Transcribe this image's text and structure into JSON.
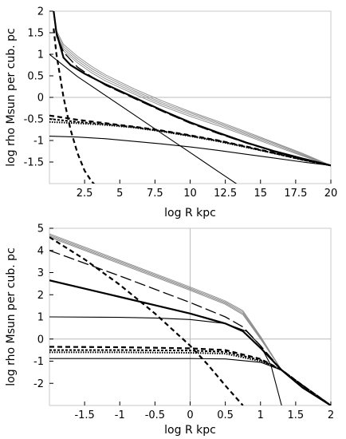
{
  "chart_data": [
    {
      "type": "line",
      "title": "",
      "xlabel": "log R  kpc",
      "ylabel": "log  rho  Msun  per cub. pc",
      "xlim": [
        0,
        20
      ],
      "ylim": [
        -2,
        2
      ],
      "xticks": [
        2.5,
        5,
        7.5,
        10,
        12.5,
        15,
        17.5,
        20
      ],
      "xtick_labels": [
        "2.5",
        "5",
        "7.5",
        "10",
        "12.5",
        "15",
        "17.5",
        "20"
      ],
      "yticks": [
        2,
        1.5,
        1,
        0.5,
        0,
        -0.5,
        -1,
        -1.5
      ],
      "ytick_labels": [
        "2",
        "1.5",
        "1",
        "0.5",
        "0",
        "-0.5",
        "-1",
        "-1.5"
      ],
      "reference_lines": {
        "y": 0
      },
      "series": [
        {
          "style": "thin-gray",
          "x": [
            0.3,
            0.5,
            1,
            2,
            3,
            4,
            6,
            8,
            10,
            12,
            14,
            16,
            18,
            20
          ],
          "y": [
            2.0,
            1.55,
            1.23,
            0.95,
            0.72,
            0.52,
            0.2,
            -0.08,
            -0.33,
            -0.56,
            -0.8,
            -1.05,
            -1.3,
            -1.58
          ]
        },
        {
          "style": "thin-gray",
          "x": [
            0.3,
            0.5,
            1,
            2,
            3,
            4,
            6,
            8,
            10,
            12,
            14,
            16,
            18,
            20
          ],
          "y": [
            2.0,
            1.5,
            1.18,
            0.9,
            0.67,
            0.48,
            0.16,
            -0.12,
            -0.36,
            -0.59,
            -0.83,
            -1.07,
            -1.32,
            -1.58
          ]
        },
        {
          "style": "thin-gray",
          "x": [
            0.3,
            0.5,
            1,
            2,
            3,
            4,
            6,
            8,
            10,
            12,
            14,
            16,
            18,
            20
          ],
          "y": [
            2.0,
            1.45,
            1.13,
            0.85,
            0.62,
            0.43,
            0.12,
            -0.16,
            -0.4,
            -0.62,
            -0.86,
            -1.1,
            -1.34,
            -1.58
          ]
        },
        {
          "style": "thin-gray",
          "x": [
            0.3,
            0.5,
            1,
            2,
            3,
            4,
            6,
            8,
            10,
            12,
            14,
            16,
            18,
            20
          ],
          "y": [
            2.0,
            1.4,
            1.08,
            0.8,
            0.57,
            0.38,
            0.08,
            -0.2,
            -0.44,
            -0.66,
            -0.89,
            -1.13,
            -1.36,
            -1.58
          ]
        },
        {
          "style": "thick-solid",
          "x": [
            0.3,
            0.5,
            1,
            1.5,
            2.5,
            4,
            6,
            8,
            10,
            12,
            14,
            16,
            18,
            20
          ],
          "y": [
            2.0,
            1.5,
            0.92,
            0.75,
            0.55,
            0.3,
            0.0,
            -0.3,
            -0.58,
            -0.82,
            -1.05,
            -1.25,
            -1.42,
            -1.58
          ]
        },
        {
          "style": "long-dash",
          "x": [
            0.3,
            0.5,
            1,
            2,
            3,
            4,
            6,
            8,
            10,
            12,
            14,
            16,
            18,
            20
          ],
          "y": [
            2.0,
            1.45,
            1.05,
            0.7,
            0.48,
            0.28,
            -0.02,
            -0.32,
            -0.6,
            -0.84,
            -1.06,
            -1.26,
            -1.44,
            -1.58
          ]
        },
        {
          "style": "thin-solid",
          "x": [
            0,
            2,
            4,
            6,
            8,
            10,
            12,
            14
          ],
          "y": [
            1.0,
            0.48,
            0.04,
            -0.4,
            -0.84,
            -1.28,
            -1.72,
            -2.16
          ]
        },
        {
          "style": "dashed",
          "x": [
            0.3,
            0.5,
            1,
            1.5,
            2,
            2.5,
            3,
            3.3
          ],
          "y": [
            1.6,
            1.0,
            0.0,
            -0.75,
            -1.3,
            -1.7,
            -1.95,
            -2.05
          ]
        },
        {
          "style": "dashed",
          "x": [
            0,
            2,
            4,
            6,
            8,
            10,
            12,
            14,
            16,
            18,
            20
          ],
          "y": [
            -0.42,
            -0.52,
            -0.6,
            -0.68,
            -0.77,
            -0.88,
            -1.0,
            -1.14,
            -1.29,
            -1.44,
            -1.58
          ]
        },
        {
          "style": "short-dash",
          "x": [
            0,
            2,
            4,
            6,
            8,
            10,
            12,
            14,
            16,
            18,
            20
          ],
          "y": [
            -0.5,
            -0.57,
            -0.62,
            -0.69,
            -0.78,
            -0.89,
            -1.01,
            -1.15,
            -1.3,
            -1.45,
            -1.58
          ]
        },
        {
          "style": "dotted",
          "x": [
            0,
            2,
            4,
            6,
            8,
            10,
            12,
            14,
            16,
            18,
            20
          ],
          "y": [
            -0.57,
            -0.6,
            -0.64,
            -0.7,
            -0.79,
            -0.9,
            -1.02,
            -1.16,
            -1.3,
            -1.45,
            -1.58
          ]
        },
        {
          "style": "thin-solid",
          "x": [
            0,
            2,
            4,
            6,
            8,
            10,
            12,
            14,
            16,
            18,
            20
          ],
          "y": [
            -0.9,
            -0.92,
            -0.96,
            -1.02,
            -1.08,
            -1.15,
            -1.23,
            -1.32,
            -1.41,
            -1.5,
            -1.58
          ]
        }
      ]
    },
    {
      "type": "line",
      "title": "",
      "xlabel": "log R  kpc",
      "ylabel": "log  rho  Msun  per cub. pc",
      "xlim": [
        -2,
        2
      ],
      "ylim": [
        -3,
        5
      ],
      "xticks": [
        -1.5,
        -1,
        -0.5,
        0,
        0.5,
        1,
        1.5,
        2
      ],
      "xtick_labels": [
        "-1.5",
        "-1",
        "-0.5",
        "0",
        "0.5",
        "1",
        "1.5",
        "2"
      ],
      "yticks": [
        5,
        4,
        3,
        2,
        1,
        0,
        -1,
        -2
      ],
      "ytick_labels": [
        "5",
        "4",
        "3",
        "2",
        "1",
        "0",
        "-1",
        "-2"
      ],
      "reference_lines": {
        "x": 0,
        "y": 0
      },
      "series": [
        {
          "style": "thin-gray",
          "x": [
            -2,
            -1,
            0,
            0.5,
            0.75,
            1,
            1.3,
            1.6,
            2
          ],
          "y": [
            4.75,
            3.55,
            2.35,
            1.72,
            1.28,
            0.12,
            -1.4,
            -2.1,
            -3.0
          ]
        },
        {
          "style": "thin-gray",
          "x": [
            -2,
            -1,
            0,
            0.5,
            0.75,
            1,
            1.3,
            1.6,
            2
          ],
          "y": [
            4.7,
            3.5,
            2.3,
            1.67,
            1.22,
            0.08,
            -1.4,
            -2.1,
            -3.0
          ]
        },
        {
          "style": "thin-gray",
          "x": [
            -2,
            -1,
            0,
            0.5,
            0.75,
            1,
            1.3,
            1.6,
            2
          ],
          "y": [
            4.65,
            3.45,
            2.25,
            1.62,
            1.16,
            0.04,
            -1.4,
            -2.1,
            -3.0
          ]
        },
        {
          "style": "thin-gray",
          "x": [
            -2,
            -1,
            0,
            0.5,
            0.75,
            1,
            1.3,
            1.6,
            2
          ],
          "y": [
            4.6,
            3.4,
            2.2,
            1.57,
            1.1,
            0.0,
            -1.4,
            -2.1,
            -3.0
          ]
        },
        {
          "style": "dashed",
          "x": [
            -2,
            -1.5,
            -1,
            -0.5,
            0,
            0.25,
            0.5,
            0.75
          ],
          "y": [
            4.6,
            3.6,
            2.45,
            1.15,
            -0.3,
            -1.15,
            -2.1,
            -3.0
          ]
        },
        {
          "style": "long-dash",
          "x": [
            -2,
            -1,
            0,
            0.5,
            0.75,
            1,
            1.3,
            1.6,
            2
          ],
          "y": [
            4.0,
            2.85,
            1.65,
            1.0,
            0.55,
            -0.3,
            -1.4,
            -2.2,
            -3.0
          ]
        },
        {
          "style": "thick-solid",
          "x": [
            -2,
            -1,
            0,
            0.5,
            0.75,
            1,
            1.3,
            1.6,
            2
          ],
          "y": [
            2.65,
            1.9,
            1.15,
            0.7,
            0.35,
            -0.4,
            -1.4,
            -2.2,
            -3.0
          ]
        },
        {
          "style": "thin-solid",
          "x": [
            -2,
            -1,
            -0.5,
            0,
            0.5,
            0.8,
            1,
            1.15,
            1.3
          ],
          "y": [
            1.0,
            0.98,
            0.95,
            0.88,
            0.7,
            0.35,
            -0.3,
            -1.2,
            -3.0
          ]
        },
        {
          "style": "dashed",
          "x": [
            -2,
            -1,
            0,
            0.5,
            1,
            1.3,
            1.6,
            2
          ],
          "y": [
            -0.35,
            -0.37,
            -0.42,
            -0.5,
            -0.9,
            -1.4,
            -2.1,
            -3.0
          ]
        },
        {
          "style": "short-dash",
          "x": [
            -2,
            -1,
            0,
            0.5,
            1,
            1.3,
            1.6,
            2
          ],
          "y": [
            -0.5,
            -0.5,
            -0.52,
            -0.58,
            -0.95,
            -1.4,
            -2.1,
            -3.0
          ]
        },
        {
          "style": "dotted",
          "x": [
            -2,
            -1,
            0,
            0.5,
            1,
            1.3,
            1.6,
            2
          ],
          "y": [
            -0.6,
            -0.6,
            -0.62,
            -0.66,
            -1.0,
            -1.4,
            -2.1,
            -3.0
          ]
        },
        {
          "style": "thin-solid",
          "x": [
            -2,
            -1,
            0,
            0.5,
            1,
            1.3,
            1.6,
            2
          ],
          "y": [
            -0.88,
            -0.88,
            -0.88,
            -0.9,
            -1.05,
            -1.4,
            -2.2,
            -3.0
          ]
        }
      ]
    }
  ]
}
